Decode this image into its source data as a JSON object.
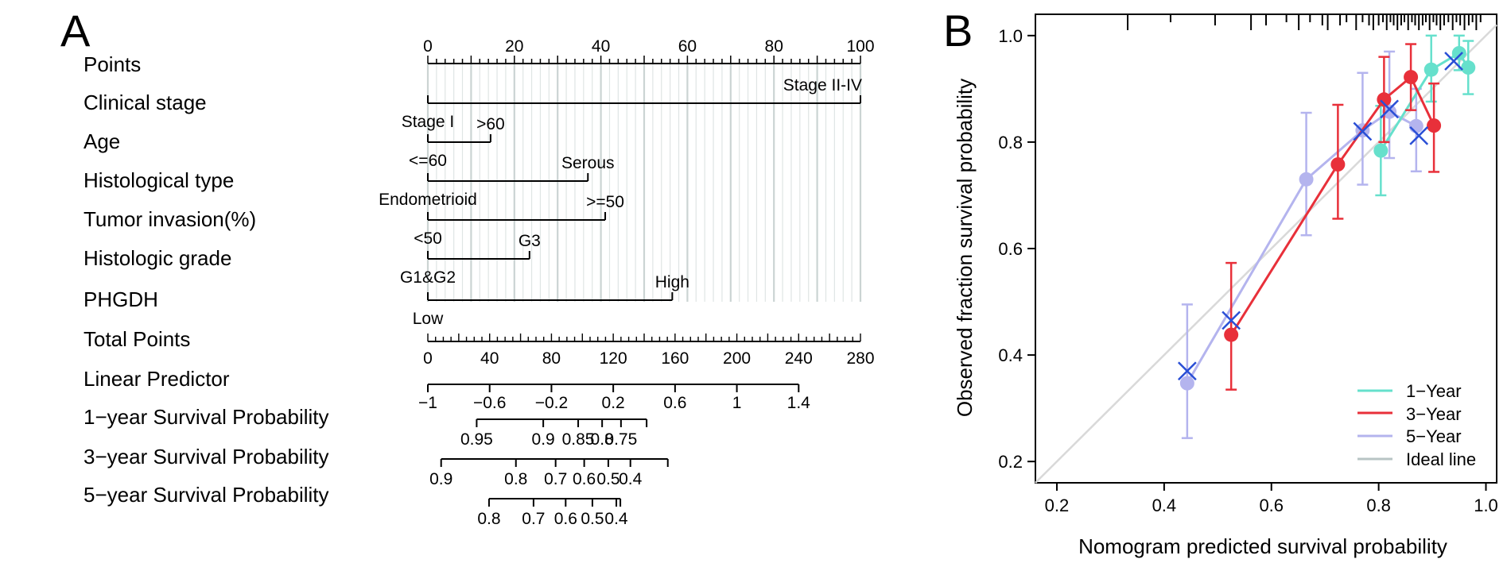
{
  "panel_a": {
    "label": "A",
    "rows": [
      "Points",
      "Clinical stage",
      "Age",
      "Histological type",
      "Tumor invasion(%)",
      "Histologic grade",
      "PHGDH",
      "Total Points",
      "Linear Predictor",
      "1−year Survival Probability",
      "3−year Survival Probability",
      "5−year Survival Probability"
    ]
  },
  "panel_b": {
    "label": "B",
    "xlabel": "Nomogram predicted survival probability",
    "ylabel": "Observed fraction survival probability",
    "legend": [
      "1−Year",
      "3−Year",
      "5−Year",
      "Ideal line"
    ]
  },
  "colors": {
    "one_year": "#66e0cc",
    "three_year": "#e8303a",
    "five_year": "#b4b4ee",
    "ideal": "#d9d9d9",
    "cross": "#2a4fd6",
    "grid": "#c6d0cf"
  },
  "chart_data": [
    {
      "type": "nomogram",
      "points_axis": {
        "range": [
          0,
          100
        ],
        "labels": [
          0,
          20,
          40,
          60,
          80,
          100
        ]
      },
      "variables": [
        {
          "name": "Clinical stage",
          "levels": [
            {
              "label": "Stage I",
              "points": 0
            },
            {
              "label": "Stage II-IV",
              "points": 100
            }
          ]
        },
        {
          "name": "Age",
          "levels": [
            {
              "label": "<=60",
              "points": 0
            },
            {
              "label": ">60",
              "points": 14.5
            }
          ]
        },
        {
          "name": "Histological type",
          "levels": [
            {
              "label": "Endometrioid",
              "points": 0
            },
            {
              "label": "Serous",
              "points": 37
            }
          ]
        },
        {
          "name": "Tumor invasion(%)",
          "levels": [
            {
              "label": "<50",
              "points": 0
            },
            {
              "label": ">=50",
              "points": 41
            }
          ]
        },
        {
          "name": "Histologic grade",
          "levels": [
            {
              "label": "G1&G2",
              "points": 0
            },
            {
              "label": "G3",
              "points": 23.5
            }
          ]
        },
        {
          "name": "PHGDH",
          "levels": [
            {
              "label": "Low",
              "points": 0
            },
            {
              "label": "High",
              "points": 56.5
            }
          ]
        }
      ],
      "total_points_axis": {
        "range": [
          0,
          280
        ],
        "labels": [
          0,
          40,
          80,
          120,
          160,
          200,
          240,
          280
        ]
      },
      "linear_predictor_axis": {
        "labels": [
          -1,
          -0.6,
          -0.2,
          0.2,
          0.6,
          1,
          1.4
        ],
        "total_points": [
          0,
          40,
          80,
          120,
          160,
          200,
          240
        ]
      },
      "survival_axes": [
        {
          "name": "1−year Survival Probability",
          "total_points_span": [
            31.6,
            141.6
          ],
          "labels": [
            "0.95",
            "0.9",
            "0.85",
            "0.8",
            "0.75"
          ],
          "total_points": [
            31.6,
            74.7,
            97.3,
            112.8,
            125.0
          ]
        },
        {
          "name": "3−year Survival Probability",
          "total_points_span": [
            8.6,
            155.3
          ],
          "labels": [
            "0.9",
            "0.8",
            "0.7",
            "0.6",
            "0.5",
            "0.4"
          ],
          "total_points": [
            8.6,
            57.0,
            82.7,
            101.2,
            116.8,
            131.1
          ]
        },
        {
          "name": "5−year Survival Probability",
          "total_points_span": [
            39.6,
            124.6
          ],
          "labels": [
            "0.8",
            "0.7",
            "0.6",
            "0.5",
            "0.4"
          ],
          "total_points": [
            39.6,
            68.4,
            89.2,
            106.5,
            122.0
          ]
        }
      ]
    },
    {
      "type": "scatter",
      "xlabel": "Nomogram predicted survival probability",
      "ylabel": "Observed fraction survival probability",
      "xlim": [
        0.16,
        1.02
      ],
      "ylim": [
        0.16,
        1.04
      ],
      "xticks": [
        "0.2",
        "0.4",
        "0.6",
        "0.8",
        "1.0"
      ],
      "yticks": [
        "0.2",
        "0.4",
        "0.6",
        "0.8",
        "1.0"
      ],
      "grid": false,
      "legend_position": "bottom-right",
      "series": [
        {
          "name": "1−Year",
          "x": [
            0.804,
            0.898,
            0.95,
            0.967
          ],
          "y": [
            0.784,
            0.936,
            0.967,
            0.94
          ],
          "err": [
            [
              0.7,
              0.868
            ],
            [
              0.876,
              1.0
            ],
            [
              0.935,
              1.0
            ],
            [
              0.89,
              0.99
            ]
          ]
        },
        {
          "name": "3−Year",
          "x": [
            0.525,
            0.724,
            0.81,
            0.86,
            0.903
          ],
          "y": [
            0.438,
            0.758,
            0.88,
            0.922,
            0.831
          ],
          "err": [
            [
              0.335,
              0.573
            ],
            [
              0.656,
              0.87
            ],
            [
              0.8,
              0.96
            ],
            [
              0.86,
              0.984
            ],
            [
              0.744,
              0.91
            ]
          ]
        },
        {
          "name": "5−Year",
          "x": [
            0.443,
            0.665,
            0.77,
            0.82,
            0.87
          ],
          "y": [
            0.347,
            0.73,
            0.822,
            0.857,
            0.83
          ],
          "err": [
            [
              0.244,
              0.495
            ],
            [
              0.625,
              0.855
            ],
            [
              0.72,
              0.93
            ],
            [
              0.77,
              0.97
            ],
            [
              0.745,
              0.9
            ]
          ]
        },
        {
          "name": "Ideal line",
          "x": [
            0.16,
            1.02
          ],
          "y": [
            0.16,
            1.02
          ]
        }
      ],
      "crosses": {
        "x": [
          0.443,
          0.525,
          0.77,
          0.82,
          0.875,
          0.94
        ],
        "y": [
          0.37,
          0.465,
          0.82,
          0.862,
          0.812,
          0.952
        ]
      },
      "rug": [
        0.332,
        0.412,
        0.495,
        0.562,
        0.59,
        0.628,
        0.651,
        0.672,
        0.695,
        0.705,
        0.728,
        0.74,
        0.758,
        0.77,
        0.782,
        0.79,
        0.8,
        0.808,
        0.815,
        0.822,
        0.828,
        0.835,
        0.842,
        0.848,
        0.855,
        0.862,
        0.868,
        0.875,
        0.882,
        0.888,
        0.895,
        0.902,
        0.908,
        0.915,
        0.922,
        0.93,
        0.938,
        0.945,
        0.952,
        0.96,
        0.968,
        0.975,
        0.982,
        0.99
      ]
    }
  ]
}
